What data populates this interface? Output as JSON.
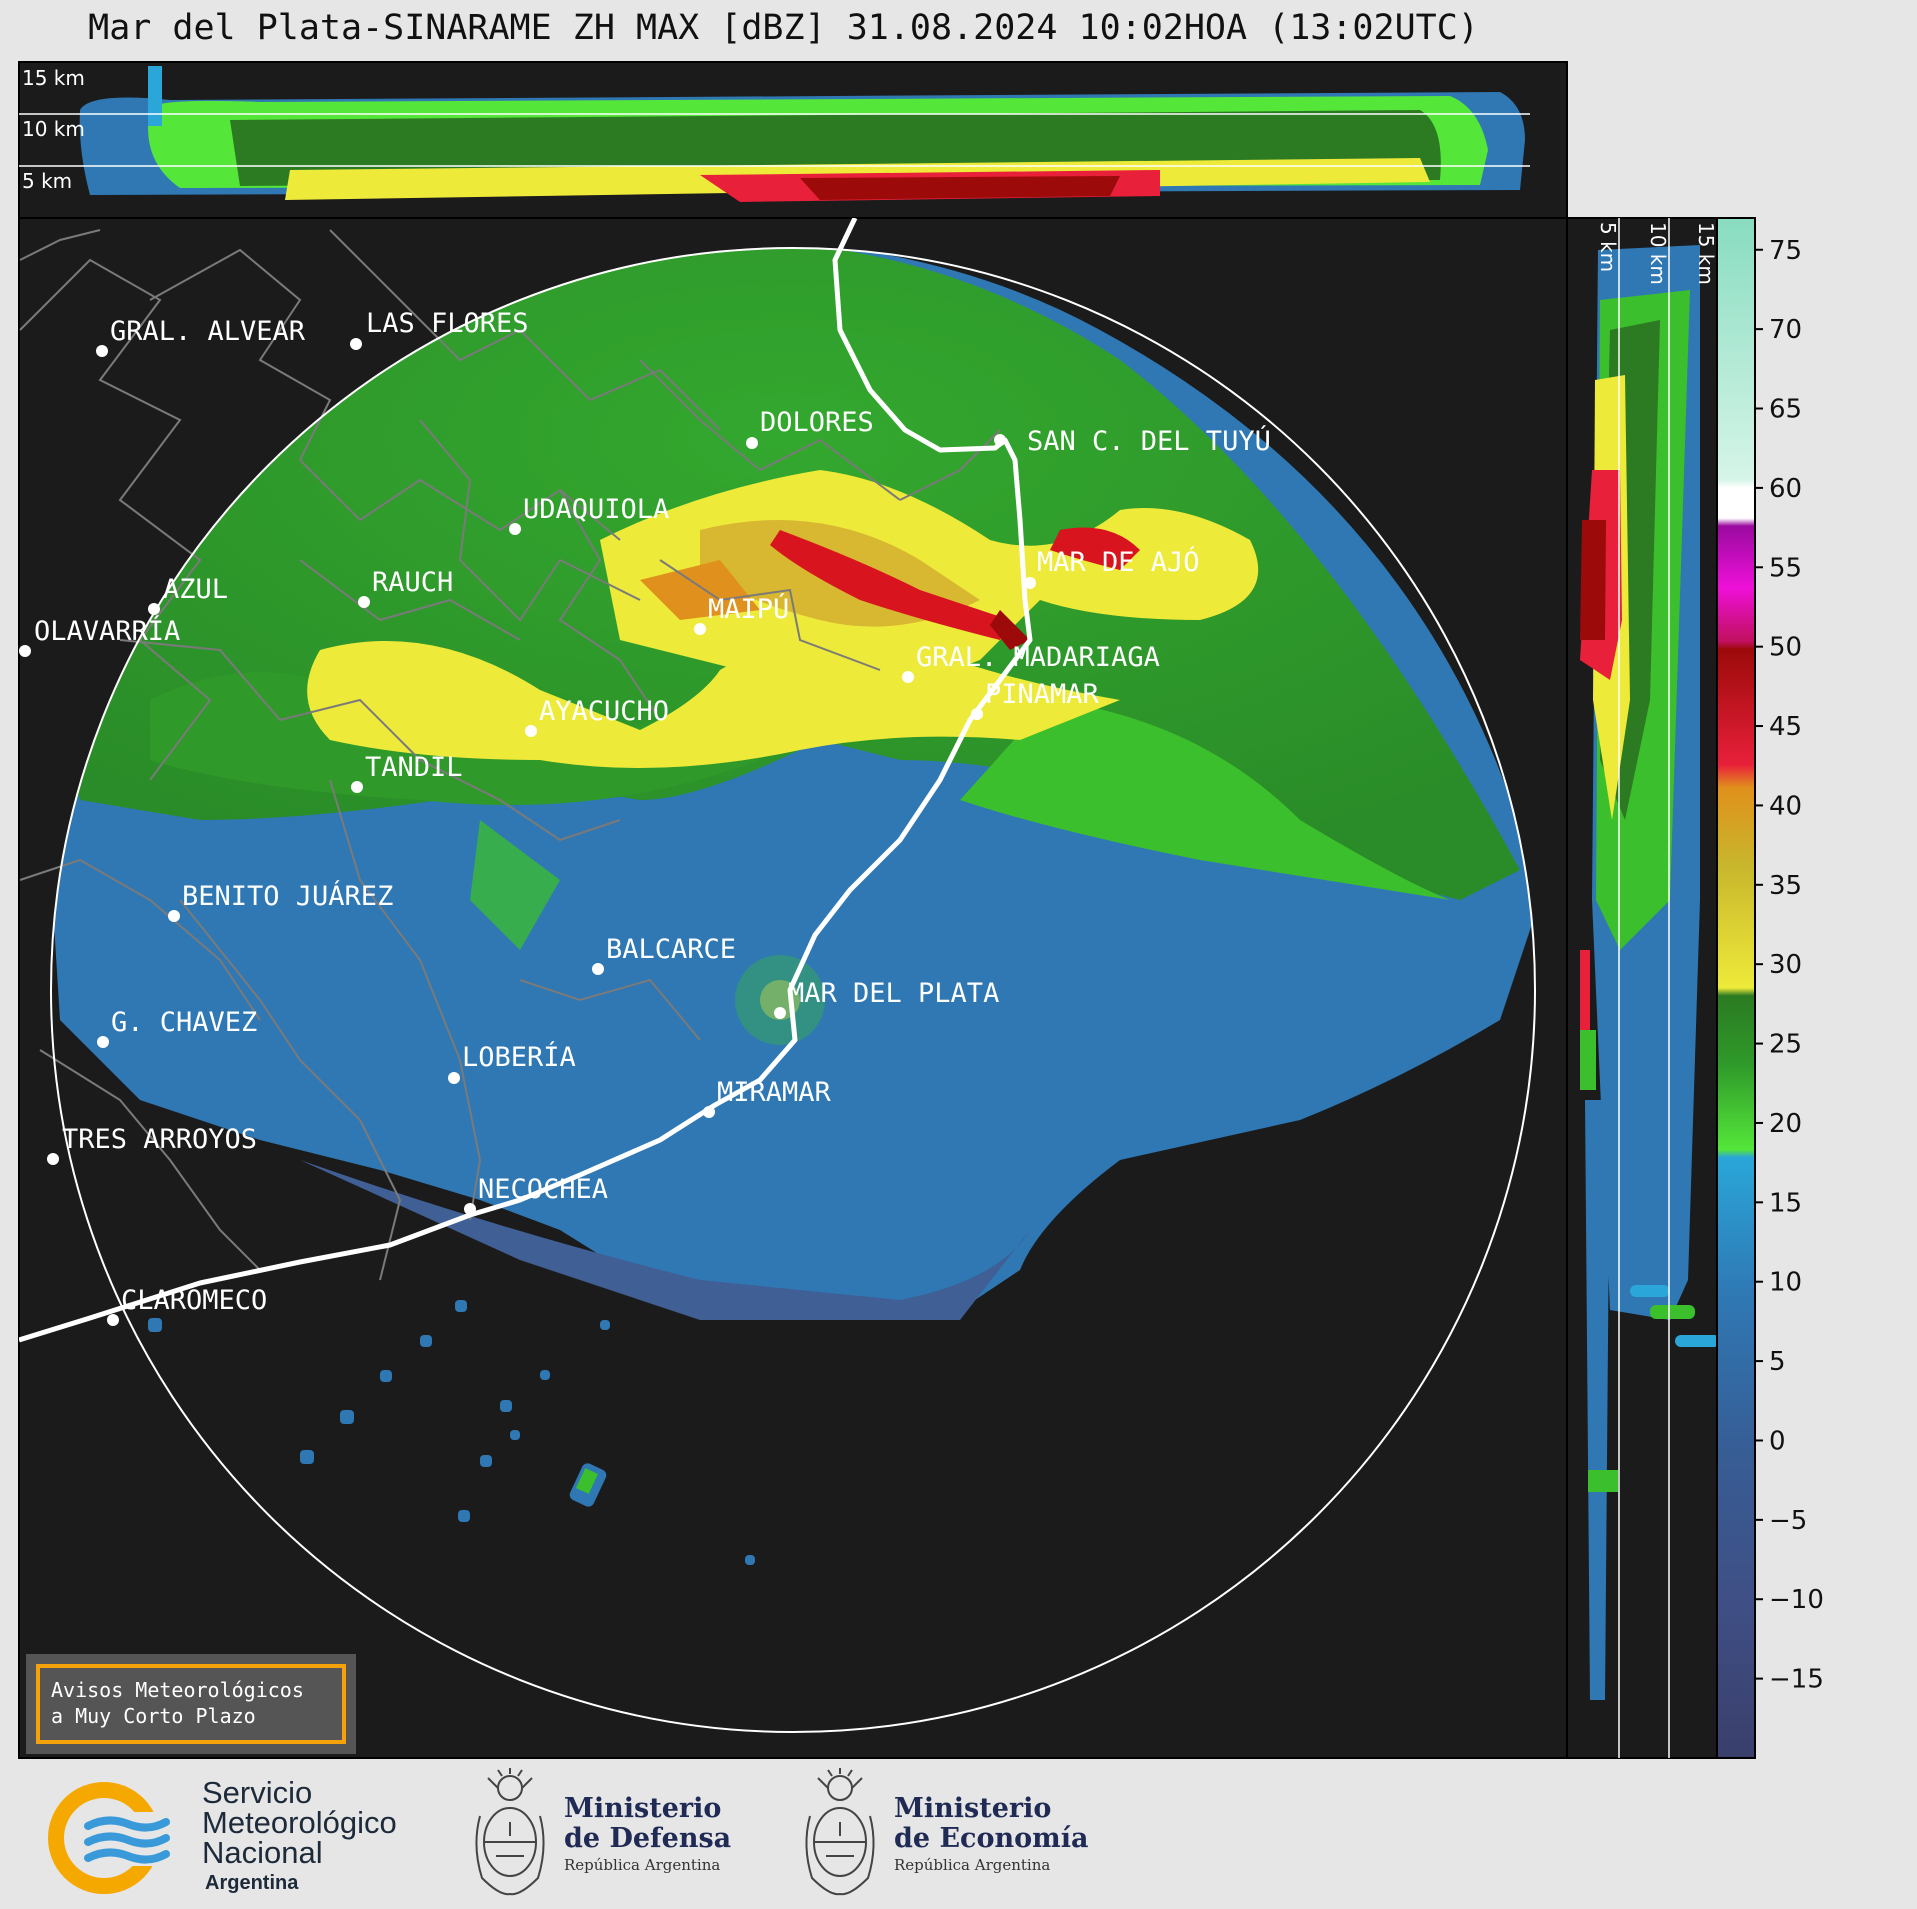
{
  "title": "Mar del Plata-SINARAME ZH MAX [dBZ] 31.08.2024 10:02HOA (13:02UTC)",
  "top_panel": {
    "height_labels": [
      "15 km",
      "10 km",
      "5 km"
    ]
  },
  "side_panel": {
    "height_labels": [
      "5 km",
      "10 km",
      "15 km"
    ]
  },
  "colorbar": {
    "ticks": [
      "75",
      "70",
      "65",
      "60",
      "55",
      "50",
      "45",
      "40",
      "35",
      "30",
      "25",
      "20",
      "15",
      "10",
      "5",
      "0",
      "−5",
      "−10",
      "−15"
    ],
    "range": [
      -20,
      77
    ]
  },
  "colors": {
    "background": "#1b1b1b",
    "page": "#e6e6e6",
    "weak": "#2f78b4",
    "moderate": "#3bbf2c",
    "strong": "#e6dc3a",
    "intense": "#d8141f",
    "range_ring": "#ffffff",
    "notice_border": "#f5a10a"
  },
  "cities": [
    "GRAL. ALVEAR",
    "LAS FLORES",
    "DOLORES",
    "SAN C. DEL TUYÚ",
    "UDAQUIOLA",
    "MAR DE AJÓ",
    "AZUL",
    "RAUCH",
    "MAIPÚ",
    "OLAVARRÍA",
    "GRAL. MADARIAGA",
    "PINAMAR",
    "AYACUCHO",
    "TANDIL",
    "BENITO JUÁREZ",
    "BALCARCE",
    "MAR DEL PLATA",
    "G. CHAVEZ",
    "LOBERÍA",
    "MIRAMAR",
    "TRES ARROYOS",
    "NECOCHEA",
    "CLAROMECO"
  ],
  "notice": {
    "line1": "Avisos Meteorológicos",
    "line2": "a Muy Corto Plazo"
  },
  "logos": {
    "smn": {
      "line1": "Servicio",
      "line2": "Meteorológico",
      "line3": "Nacional",
      "line4": "Argentina",
      "icon": "smn-sun-waves-icon"
    },
    "defensa": {
      "line1": "Ministerio",
      "line2": "de Defensa",
      "line3": "República Argentina",
      "icon": "coat-of-arms-icon"
    },
    "economia": {
      "line1": "Ministerio",
      "line2": "de Economía",
      "line3": "República Argentina",
      "icon": "coat-of-arms-icon"
    }
  }
}
